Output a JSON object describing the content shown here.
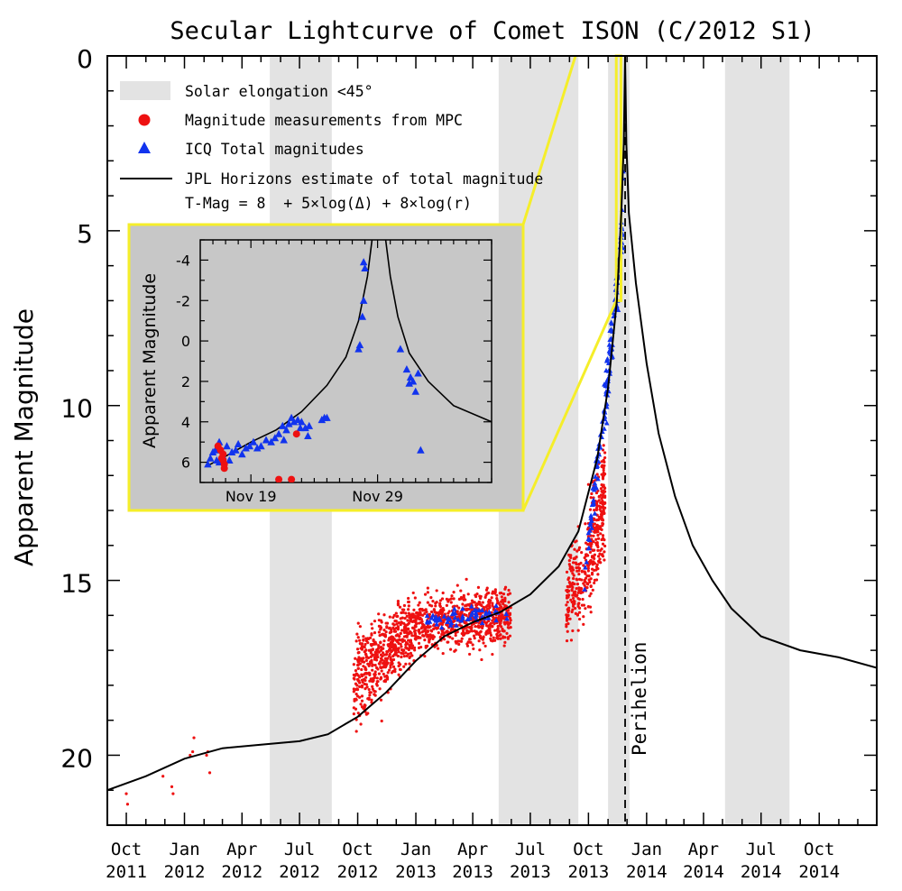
{
  "chart_data": {
    "type": "scatter",
    "title": "Secular Lightcurve of Comet ISON (C/2012 S1)",
    "ylabel": "Apparent Magnitude",
    "ylim": [
      22,
      0
    ],
    "y_ticks": [
      "0",
      "5",
      "10",
      "15",
      "20"
    ],
    "y_reversed": true,
    "x_range": [
      "2011-09-01",
      "2014-12-31"
    ],
    "x_tick_labels": [
      {
        "month": "Oct",
        "year": "2011",
        "date": "2011-10-01"
      },
      {
        "month": "Jan",
        "year": "2012",
        "date": "2012-01-01"
      },
      {
        "month": "Apr",
        "year": "2012",
        "date": "2012-04-01"
      },
      {
        "month": "Jul",
        "year": "2012",
        "date": "2012-07-01"
      },
      {
        "month": "Oct",
        "year": "2012",
        "date": "2012-10-01"
      },
      {
        "month": "Jan",
        "year": "2013",
        "date": "2013-01-01"
      },
      {
        "month": "Apr",
        "year": "2013",
        "date": "2013-04-01"
      },
      {
        "month": "Jul",
        "year": "2013",
        "date": "2013-07-01"
      },
      {
        "month": "Oct",
        "year": "2013",
        "date": "2013-10-01"
      },
      {
        "month": "Jan",
        "year": "2014",
        "date": "2014-01-01"
      },
      {
        "month": "Apr",
        "year": "2014",
        "date": "2014-04-01"
      },
      {
        "month": "Jul",
        "year": "2014",
        "date": "2014-07-01"
      },
      {
        "month": "Oct",
        "year": "2014",
        "date": "2014-10-01"
      }
    ],
    "legend": {
      "placement": "top-left",
      "entries": [
        {
          "label": "Solar elongation <45°",
          "kind": "band",
          "color": "#e3e3e3"
        },
        {
          "label": "Magnitude measurements from MPC",
          "kind": "circle",
          "color": "#ee1111"
        },
        {
          "label": "ICQ Total magnitudes",
          "kind": "triangle",
          "color": "#1133ee"
        },
        {
          "label": "JPL Horizons estimate of total magnitude",
          "kind": "line",
          "color": "#000000"
        },
        {
          "label": "T-Mag = 8  + 5×log(Δ) + 8×log(r)",
          "kind": "text"
        }
      ]
    },
    "elongation_bands": [
      [
        "2012-05-15",
        "2012-08-21"
      ],
      [
        "2013-05-12",
        "2013-09-15"
      ],
      [
        "2013-11-01",
        "2013-12-05"
      ],
      [
        "2014-05-05",
        "2014-08-15"
      ]
    ],
    "perihelion": {
      "label": "Perihelion",
      "date": "2013-11-28"
    },
    "jpl_curve": [
      [
        "2011-09-01",
        21.0
      ],
      [
        "2011-11-01",
        20.6
      ],
      [
        "2012-01-01",
        20.1
      ],
      [
        "2012-03-01",
        19.8
      ],
      [
        "2012-05-01",
        19.7
      ],
      [
        "2012-07-01",
        19.6
      ],
      [
        "2012-08-15",
        19.4
      ],
      [
        "2012-10-01",
        18.9
      ],
      [
        "2012-11-15",
        18.2
      ],
      [
        "2013-01-01",
        17.3
      ],
      [
        "2013-02-15",
        16.6
      ],
      [
        "2013-04-01",
        16.2
      ],
      [
        "2013-05-15",
        15.9
      ],
      [
        "2013-07-01",
        15.4
      ],
      [
        "2013-08-15",
        14.6
      ],
      [
        "2013-09-15",
        13.6
      ],
      [
        "2013-10-15",
        11.5
      ],
      [
        "2013-11-01",
        9.5
      ],
      [
        "2013-11-15",
        7.0
      ],
      [
        "2013-11-22",
        4.5
      ],
      [
        "2013-11-26",
        2.5
      ],
      [
        "2013-11-28",
        0.0
      ],
      [
        "2013-11-30",
        2.5
      ],
      [
        "2013-12-04",
        4.5
      ],
      [
        "2013-12-15",
        6.5
      ],
      [
        "2014-01-01",
        8.8
      ],
      [
        "2014-01-20",
        10.8
      ],
      [
        "2014-02-15",
        12.6
      ],
      [
        "2014-03-15",
        14.0
      ],
      [
        "2014-04-15",
        15.0
      ],
      [
        "2014-05-15",
        15.8
      ],
      [
        "2014-07-01",
        16.6
      ],
      [
        "2014-09-01",
        17.0
      ],
      [
        "2014-11-01",
        17.2
      ],
      [
        "2014-12-31",
        17.5
      ]
    ],
    "mpc_points": [
      [
        "2011-10-01",
        21.1
      ],
      [
        "2011-10-03",
        21.4
      ],
      [
        "2011-11-28",
        20.6
      ],
      [
        "2011-12-12",
        20.9
      ],
      [
        "2011-12-14",
        21.1
      ],
      [
        "2012-01-10",
        20.0
      ],
      [
        "2012-01-16",
        19.5
      ],
      [
        "2012-01-14",
        19.9
      ],
      [
        "2012-02-07",
        19.9
      ],
      [
        "2012-02-10",
        20.5
      ],
      [
        "2012-02-05",
        20.0
      ]
    ],
    "mpc_clusters": [
      {
        "from": "2012-09-25",
        "to": "2012-11-10",
        "center_start": 17.9,
        "center_end": 17.1,
        "spread": 1.3,
        "count": 260
      },
      {
        "from": "2012-11-10",
        "to": "2013-01-01",
        "center_start": 17.1,
        "center_end": 16.3,
        "spread": 1.0,
        "count": 300
      },
      {
        "from": "2013-01-01",
        "to": "2013-06-01",
        "center_start": 16.3,
        "center_end": 16.0,
        "spread": 0.8,
        "count": 700
      },
      {
        "from": "2013-08-27",
        "to": "2013-10-01",
        "center_start": 15.6,
        "center_end": 14.6,
        "spread": 1.2,
        "count": 180
      },
      {
        "from": "2013-10-01",
        "to": "2013-10-28",
        "center_start": 14.4,
        "center_end": 12.6,
        "spread": 1.6,
        "count": 260
      }
    ],
    "icq_clusters": [
      {
        "from": "2013-01-15",
        "to": "2013-06-01",
        "center_start": 16.1,
        "center_end": 15.9,
        "spread": 0.5,
        "count": 60
      },
      {
        "from": "2013-09-25",
        "to": "2013-10-25",
        "center_start": 15.0,
        "center_end": 10.0,
        "spread": 1.0,
        "count": 40
      },
      {
        "from": "2013-10-25",
        "to": "2013-11-25",
        "center_start": 10.5,
        "center_end": 5.0,
        "spread": 1.2,
        "count": 90
      }
    ],
    "icq_upper": [
      [
        "2013-10-20",
        11.2
      ],
      [
        "2013-10-22",
        10.9
      ],
      [
        "2013-10-30",
        10.5
      ],
      [
        "2013-11-08",
        8.6
      ],
      [
        "2013-11-16",
        7.0
      ],
      [
        "2013-11-19",
        6.1
      ],
      [
        "2013-11-21",
        5.3
      ],
      [
        "2013-11-23",
        4.4
      ],
      [
        "2013-11-24",
        3.5
      ],
      [
        "2013-11-25",
        3.3
      ]
    ],
    "inset": {
      "ylabel": "Apparent Magnitude",
      "y_ticks": [
        -4,
        -2,
        0,
        2,
        4,
        6
      ],
      "ylim": [
        7,
        -5
      ],
      "x_ticks": [
        {
          "label": "Nov 19",
          "day": 19
        },
        {
          "label": "Nov 29",
          "day": 29
        }
      ],
      "xlim": [
        15,
        38
      ],
      "zoom_region": {
        "x_from": "2013-11-14",
        "x_to": "2013-12-10",
        "y_from": 0,
        "y_to": 7
      },
      "jpl_curve": [
        [
          15.5,
          6.2
        ],
        [
          17,
          5.7
        ],
        [
          19,
          5.0
        ],
        [
          21,
          4.4
        ],
        [
          23,
          3.5
        ],
        [
          25,
          2.2
        ],
        [
          26.5,
          0.8
        ],
        [
          27.5,
          -1.0
        ],
        [
          28.2,
          -3.2
        ],
        [
          28.6,
          -5.2
        ],
        [
          29.6,
          -5.2
        ],
        [
          30,
          -3.2
        ],
        [
          30.6,
          -1.2
        ],
        [
          31.5,
          0.6
        ],
        [
          33,
          2.0
        ],
        [
          35,
          3.2
        ],
        [
          38,
          4.0
        ]
      ],
      "mpc_points": [
        [
          16.4,
          5.2
        ],
        [
          16.6,
          5.4
        ],
        [
          16.8,
          5.6
        ],
        [
          16.8,
          5.9
        ],
        [
          16.9,
          6.1
        ],
        [
          16.9,
          6.3
        ],
        [
          16.7,
          5.8
        ],
        [
          21.2,
          6.85
        ],
        [
          22.2,
          6.85
        ],
        [
          22.6,
          4.6
        ]
      ],
      "icq_points": [
        [
          15.6,
          6.1
        ],
        [
          15.8,
          5.8
        ],
        [
          16.0,
          5.5
        ],
        [
          16.2,
          5.4
        ],
        [
          16.3,
          5.9
        ],
        [
          16.5,
          5.0
        ],
        [
          16.5,
          6.0
        ],
        [
          16.8,
          5.7
        ],
        [
          17.1,
          5.2
        ],
        [
          17.3,
          5.9
        ],
        [
          17.5,
          5.5
        ],
        [
          17.8,
          5.4
        ],
        [
          18.0,
          5.1
        ],
        [
          18.3,
          5.6
        ],
        [
          18.6,
          5.3
        ],
        [
          18.9,
          5.2
        ],
        [
          19.2,
          5.0
        ],
        [
          19.5,
          5.3
        ],
        [
          19.8,
          5.2
        ],
        [
          20.2,
          4.9
        ],
        [
          20.6,
          5.0
        ],
        [
          20.9,
          4.8
        ],
        [
          21.2,
          4.6
        ],
        [
          21.5,
          4.2
        ],
        [
          21.6,
          4.9
        ],
        [
          21.8,
          4.4
        ],
        [
          22.0,
          4.1
        ],
        [
          22.2,
          3.8
        ],
        [
          22.4,
          4.0
        ],
        [
          22.7,
          3.9
        ],
        [
          23.0,
          4.0
        ],
        [
          23.3,
          4.3
        ],
        [
          23.6,
          4.2
        ],
        [
          24.8,
          3.8
        ],
        [
          24.6,
          3.9
        ],
        [
          25.0,
          3.8
        ],
        [
          22.9,
          4.3
        ],
        [
          23.5,
          4.7
        ],
        [
          27.8,
          -1.2
        ],
        [
          27.9,
          -2.0
        ],
        [
          27.6,
          0.2
        ],
        [
          28.0,
          -3.6
        ],
        [
          27.9,
          -3.9
        ],
        [
          30.8,
          0.4
        ],
        [
          31.3,
          1.4
        ],
        [
          31.6,
          1.8
        ],
        [
          31.8,
          2.0
        ],
        [
          32.0,
          2.5
        ],
        [
          32.2,
          1.6
        ],
        [
          32.4,
          5.4
        ],
        [
          31.5,
          2.1
        ],
        [
          27.5,
          0.4
        ]
      ]
    }
  }
}
